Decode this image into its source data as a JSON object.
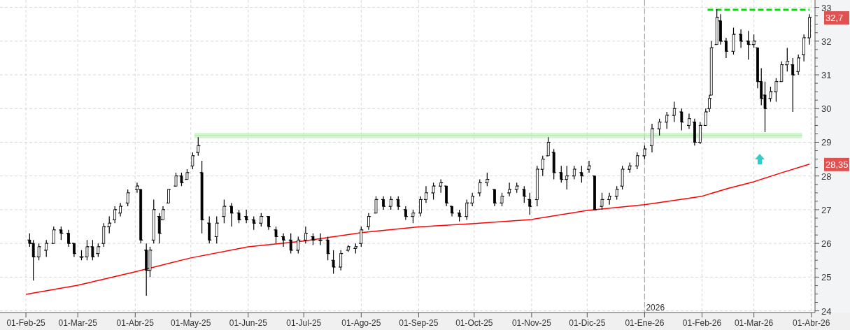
{
  "chart_data": {
    "type": "candlestick",
    "color": "#000000",
    "x": [
      "2025-02-03",
      "2025-02-05",
      "2025-02-08",
      "2025-02-12",
      "2025-02-16",
      "2025-02-20",
      "2025-02-24",
      "2025-02-27",
      "2025-03-03",
      "2025-03-06",
      "2025-03-09",
      "2025-03-12",
      "2025-03-15",
      "2025-03-18",
      "2025-03-21",
      "2025-03-24",
      "2025-03-28",
      "2025-04-02",
      "2025-04-04",
      "2025-04-07",
      "2025-04-09",
      "2025-04-11",
      "2025-04-14",
      "2025-04-16",
      "2025-04-19",
      "2025-04-23",
      "2025-04-26",
      "2025-04-29",
      "2025-05-02",
      "2025-05-05",
      "2025-05-07",
      "2025-05-11",
      "2025-05-15",
      "2025-05-19",
      "2025-05-23",
      "2025-05-27",
      "2025-05-31",
      "2025-06-04",
      "2025-06-08",
      "2025-06-12",
      "2025-06-16",
      "2025-06-20",
      "2025-06-24",
      "2025-06-28",
      "2025-07-02",
      "2025-07-06",
      "2025-07-10",
      "2025-07-14",
      "2025-07-17",
      "2025-07-21",
      "2025-07-25",
      "2025-07-29",
      "2025-08-01",
      "2025-08-05",
      "2025-08-09",
      "2025-08-13",
      "2025-08-17",
      "2025-08-21",
      "2025-08-25",
      "2025-08-29",
      "2025-09-02",
      "2025-09-05",
      "2025-09-09",
      "2025-09-13",
      "2025-09-16",
      "2025-09-19",
      "2025-09-23",
      "2025-09-27",
      "2025-09-30",
      "2025-10-04",
      "2025-10-08",
      "2025-10-12",
      "2025-10-16",
      "2025-10-20",
      "2025-10-24",
      "2025-10-28",
      "2025-10-31",
      "2025-11-04",
      "2025-11-07",
      "2025-11-10",
      "2025-11-13",
      "2025-11-17",
      "2025-11-20",
      "2025-11-24",
      "2025-11-28",
      "2025-12-02",
      "2025-12-05",
      "2025-12-09",
      "2025-12-13",
      "2025-12-17",
      "2025-12-20",
      "2025-12-24",
      "2025-12-28",
      "2026-01-01",
      "2026-01-05",
      "2026-01-09",
      "2026-01-13",
      "2026-01-17",
      "2026-01-21",
      "2026-01-25",
      "2026-01-28",
      "2026-01-31",
      "2026-02-03",
      "2026-02-05",
      "2026-02-06",
      "2026-02-09",
      "2026-02-11",
      "2026-02-14",
      "2026-02-18",
      "2026-02-22",
      "2026-02-26",
      "2026-03-01",
      "2026-03-03",
      "2026-03-05",
      "2026-03-07",
      "2026-03-10",
      "2026-03-13",
      "2026-03-16",
      "2026-03-19",
      "2026-03-22",
      "2026-03-25",
      "2026-03-28",
      "2026-03-31"
    ],
    "ohlc": [
      [
        26.1,
        26.3,
        25.9,
        26.0
      ],
      [
        26.0,
        26.1,
        24.9,
        25.6
      ],
      [
        25.6,
        26.0,
        25.5,
        25.9
      ],
      [
        25.8,
        26.1,
        25.6,
        26.0
      ],
      [
        26.0,
        26.5,
        26.0,
        26.4
      ],
      [
        26.4,
        26.5,
        26.1,
        26.3
      ],
      [
        26.3,
        26.4,
        25.9,
        26.0
      ],
      [
        26.0,
        26.0,
        25.6,
        25.7
      ],
      [
        25.6,
        25.8,
        25.5,
        25.6
      ],
      [
        25.6,
        26.1,
        25.5,
        25.9
      ],
      [
        25.9,
        26.1,
        25.5,
        25.6
      ],
      [
        25.7,
        26.0,
        25.6,
        25.9
      ],
      [
        26.0,
        26.6,
        25.9,
        26.5
      ],
      [
        26.5,
        26.8,
        26.3,
        26.6
      ],
      [
        26.7,
        27.1,
        26.6,
        27.0
      ],
      [
        26.9,
        27.2,
        26.8,
        27.1
      ],
      [
        27.2,
        27.6,
        27.1,
        27.5
      ],
      [
        27.6,
        27.8,
        27.5,
        27.7
      ],
      [
        27.6,
        27.6,
        26.0,
        26.1
      ],
      [
        25.8,
        26.0,
        24.45,
        25.2
      ],
      [
        25.2,
        25.9,
        25.0,
        25.8
      ],
      [
        26.1,
        27.3,
        26.0,
        27.0
      ],
      [
        26.8,
        26.9,
        26.0,
        26.3
      ],
      [
        26.7,
        27.1,
        26.7,
        27.0
      ],
      [
        27.2,
        27.6,
        27.2,
        27.6
      ],
      [
        27.7,
        28.1,
        27.7,
        28.0
      ],
      [
        28.0,
        28.1,
        27.7,
        27.8
      ],
      [
        27.9,
        28.2,
        27.9,
        28.1
      ],
      [
        28.3,
        28.7,
        28.2,
        28.6
      ],
      [
        28.7,
        29.15,
        28.6,
        28.9
      ],
      [
        28.1,
        28.45,
        26.3,
        26.7
      ],
      [
        26.6,
        26.8,
        26.0,
        26.1
      ],
      [
        26.2,
        26.8,
        26.0,
        26.6
      ],
      [
        26.8,
        27.3,
        26.6,
        27.1
      ],
      [
        27.1,
        27.2,
        26.5,
        26.9
      ],
      [
        26.9,
        27.0,
        26.6,
        26.7
      ],
      [
        26.8,
        27.0,
        26.6,
        26.7
      ],
      [
        26.7,
        26.8,
        26.4,
        26.6
      ],
      [
        26.6,
        26.9,
        26.5,
        26.8
      ],
      [
        26.8,
        26.8,
        26.4,
        26.5
      ],
      [
        26.4,
        26.5,
        26.0,
        26.2
      ],
      [
        26.2,
        26.3,
        25.9,
        26.1
      ],
      [
        26.1,
        26.3,
        25.7,
        25.8
      ],
      [
        25.8,
        26.2,
        25.7,
        26.1
      ],
      [
        26.1,
        26.5,
        26.0,
        26.3
      ],
      [
        26.2,
        26.3,
        25.95,
        26.1
      ],
      [
        26.1,
        26.3,
        25.95,
        26.1
      ],
      [
        26.1,
        26.2,
        25.5,
        25.7
      ],
      [
        25.5,
        25.8,
        25.1,
        25.3
      ],
      [
        25.3,
        25.8,
        25.2,
        25.7
      ],
      [
        25.8,
        25.95,
        25.75,
        25.9
      ],
      [
        25.85,
        26.0,
        25.7,
        25.9
      ],
      [
        26.0,
        26.5,
        25.9,
        26.4
      ],
      [
        26.5,
        26.9,
        26.4,
        26.8
      ],
      [
        26.9,
        27.4,
        26.9,
        27.3
      ],
      [
        27.3,
        27.4,
        27.0,
        27.1
      ],
      [
        27.1,
        27.4,
        27.0,
        27.3
      ],
      [
        27.3,
        27.4,
        27.0,
        27.1
      ],
      [
        27.0,
        27.1,
        26.7,
        26.8
      ],
      [
        26.8,
        27.0,
        26.6,
        26.9
      ],
      [
        26.9,
        27.4,
        26.8,
        27.3
      ],
      [
        27.3,
        27.7,
        27.2,
        27.5
      ],
      [
        27.5,
        27.8,
        27.3,
        27.7
      ],
      [
        27.7,
        27.9,
        27.5,
        27.8
      ],
      [
        27.7,
        27.7,
        27.1,
        27.2
      ],
      [
        27.1,
        27.1,
        26.8,
        26.9
      ],
      [
        26.9,
        27.0,
        26.65,
        26.8
      ],
      [
        26.8,
        27.3,
        26.7,
        27.2
      ],
      [
        27.2,
        27.5,
        27.1,
        27.4
      ],
      [
        27.5,
        27.9,
        27.4,
        27.8
      ],
      [
        27.8,
        28.1,
        27.7,
        27.9
      ],
      [
        27.6,
        27.6,
        27.1,
        27.2
      ],
      [
        27.2,
        27.5,
        27.1,
        27.4
      ],
      [
        27.5,
        27.8,
        27.4,
        27.6
      ],
      [
        27.6,
        27.8,
        27.5,
        27.7
      ],
      [
        27.6,
        27.7,
        27.2,
        27.4
      ],
      [
        27.3,
        27.5,
        26.85,
        27.1
      ],
      [
        27.3,
        28.3,
        27.1,
        28.2
      ],
      [
        28.2,
        28.6,
        28.0,
        28.5
      ],
      [
        28.6,
        29.15,
        28.6,
        29.0
      ],
      [
        28.7,
        28.8,
        27.9,
        28.1
      ],
      [
        28.1,
        28.3,
        27.8,
        27.9
      ],
      [
        27.9,
        28.3,
        27.6,
        28.0
      ],
      [
        28.0,
        28.3,
        27.9,
        28.2
      ],
      [
        28.1,
        28.3,
        27.8,
        28.0
      ],
      [
        28.2,
        28.45,
        28.1,
        28.3
      ],
      [
        28.0,
        28.0,
        27.0,
        27.0
      ],
      [
        27.1,
        27.5,
        27.0,
        27.3
      ],
      [
        27.3,
        27.5,
        27.15,
        27.4
      ],
      [
        27.4,
        27.7,
        27.3,
        27.6
      ],
      [
        27.7,
        28.3,
        27.6,
        28.2
      ],
      [
        28.2,
        28.4,
        28.1,
        28.3
      ],
      [
        28.3,
        28.7,
        28.2,
        28.6
      ],
      [
        28.6,
        28.9,
        28.5,
        28.8
      ],
      [
        28.9,
        29.55,
        28.7,
        29.4
      ],
      [
        29.4,
        29.7,
        29.2,
        29.6
      ],
      [
        29.6,
        29.9,
        29.4,
        29.8
      ],
      [
        29.8,
        30.2,
        29.6,
        30.0
      ],
      [
        29.9,
        30.0,
        29.35,
        29.6
      ],
      [
        29.5,
        29.85,
        29.4,
        29.7
      ],
      [
        29.6,
        29.7,
        28.9,
        29.0
      ],
      [
        29.0,
        29.6,
        28.95,
        29.5
      ],
      [
        29.5,
        30.0,
        29.5,
        29.9
      ],
      [
        30.0,
        30.4,
        29.9,
        30.3
      ],
      [
        30.4,
        32.0,
        30.4,
        31.8
      ],
      [
        31.9,
        32.95,
        31.9,
        32.7
      ],
      [
        32.6,
        32.8,
        31.9,
        32.0
      ],
      [
        32.0,
        32.1,
        31.5,
        31.7
      ],
      [
        31.7,
        32.4,
        31.6,
        32.2
      ],
      [
        32.2,
        32.35,
        31.8,
        32.0
      ],
      [
        32.0,
        32.3,
        31.45,
        31.9
      ],
      [
        31.9,
        32.2,
        31.8,
        32.0
      ],
      [
        31.8,
        31.8,
        30.6,
        30.8
      ],
      [
        30.8,
        31.2,
        30.1,
        30.3
      ],
      [
        30.4,
        30.8,
        29.3,
        30.0
      ],
      [
        30.3,
        30.65,
        30.2,
        30.5
      ],
      [
        30.5,
        30.9,
        30.2,
        30.8
      ],
      [
        30.8,
        31.4,
        30.8,
        31.3
      ],
      [
        31.3,
        31.8,
        31.1,
        31.4
      ],
      [
        31.3,
        31.5,
        29.9,
        31.0
      ],
      [
        31.1,
        31.6,
        31.0,
        31.5
      ],
      [
        31.6,
        32.2,
        31.4,
        32.1
      ],
      [
        32.1,
        32.8,
        31.9,
        32.7
      ]
    ],
    "series": [
      {
        "type": "line",
        "color": "#ff0000",
        "x": [
          "2025-02-01",
          "2025-03-01",
          "2025-04-01",
          "2025-05-01",
          "2025-06-01",
          "2025-07-01",
          "2025-08-01",
          "2025-09-01",
          "2025-10-01",
          "2025-11-01",
          "2025-12-01",
          "2026-01-01",
          "2026-01-16",
          "2026-02-01",
          "2026-02-15",
          "2026-03-01",
          "2026-03-15",
          "2026-03-31"
        ],
        "values": [
          24.49,
          24.76,
          25.16,
          25.57,
          25.9,
          26.07,
          26.32,
          26.49,
          26.59,
          26.71,
          26.98,
          27.15,
          27.27,
          27.4,
          27.63,
          27.83,
          28.08,
          28.35
        ]
      },
      {
        "type": "line",
        "color": "#00e000",
        "line_style": "dashed",
        "x": [
          "2026-02-04",
          "2026-03-31"
        ],
        "values": [
          32.93,
          32.93
        ]
      },
      {
        "type": "line",
        "color": "#b8eeb2",
        "x": [
          "2025-05-03",
          "2026-03-27"
        ],
        "values": [
          29.2,
          29.2
        ],
        "lower": [
          29.12,
          29.12
        ],
        "upper": [
          29.28,
          29.28
        ]
      }
    ],
    "xlim": [
      "2025-01-18",
      "2026-04-03"
    ],
    "xticks": [
      {
        "value": "2025-02-01",
        "label": "01-Feb-25"
      },
      {
        "value": "2025-03-01",
        "label": "01-Mar-25"
      },
      {
        "value": "2025-04-01",
        "label": "01-Abr-25"
      },
      {
        "value": "2025-05-01",
        "label": "01-May-25"
      },
      {
        "value": "2025-06-01",
        "label": "01-Jun-25"
      },
      {
        "value": "2025-07-01",
        "label": "01-Jul-25"
      },
      {
        "value": "2025-08-01",
        "label": "01-Ago-25"
      },
      {
        "value": "2025-09-01",
        "label": "01-Sep-25"
      },
      {
        "value": "2025-10-01",
        "label": "01-Oct-25"
      },
      {
        "value": "2025-11-01",
        "label": "01-Nov-25"
      },
      {
        "value": "2025-12-01",
        "label": "01-Dic-25"
      },
      {
        "value": "2026-01-01",
        "label": "01-Ene-26"
      },
      {
        "value": "2026-02-01",
        "label": "01-Feb-26"
      },
      {
        "value": "2026-03-01",
        "label": "01-Mar-26"
      },
      {
        "value": "2026-04-01",
        "label": "01-Abr-26"
      }
    ],
    "ylim": [
      23.95,
      33.22
    ],
    "yticks": [
      24,
      {
        "value": 24.25,
        "label": null
      },
      {
        "value": 24.5,
        "label": null
      },
      {
        "value": 24.75,
        "label": null
      },
      25,
      {
        "value": 25.25,
        "label": null
      },
      {
        "value": 25.5,
        "label": null
      },
      {
        "value": 25.75,
        "label": null
      },
      26,
      {
        "value": 26.25,
        "label": null
      },
      {
        "value": 26.5,
        "label": null
      },
      {
        "value": 26.75,
        "label": null
      },
      27,
      {
        "value": 27.25,
        "label": null
      },
      {
        "value": 27.5,
        "label": null
      },
      {
        "value": 27.75,
        "label": null
      },
      28,
      {
        "value": 28.25,
        "label": null
      },
      {
        "value": 28.5,
        "label": null
      },
      {
        "value": 28.75,
        "label": null
      },
      29,
      {
        "value": 29.25,
        "label": null
      },
      {
        "value": 29.5,
        "label": null
      },
      {
        "value": 29.75,
        "label": null
      },
      30,
      {
        "value": 30.25,
        "label": null
      },
      {
        "value": 30.5,
        "label": null
      },
      {
        "value": 30.75,
        "label": null
      },
      31,
      {
        "value": 31.25,
        "label": null
      },
      {
        "value": 31.5,
        "label": null
      },
      {
        "value": 31.75,
        "label": null
      },
      32,
      {
        "value": 32.25,
        "label": null
      },
      {
        "value": 32.5,
        "label": null
      },
      {
        "value": 32.75,
        "label": null
      },
      33
    ],
    "grid": true,
    "ref_lines": [
      {
        "axis": "x",
        "value": "2026-01-01",
        "label": "2026",
        "color": "#aaaaaa",
        "line_style": "dashed"
      }
    ],
    "annotations": [
      "32,7",
      "28,35"
    ]
  }
}
